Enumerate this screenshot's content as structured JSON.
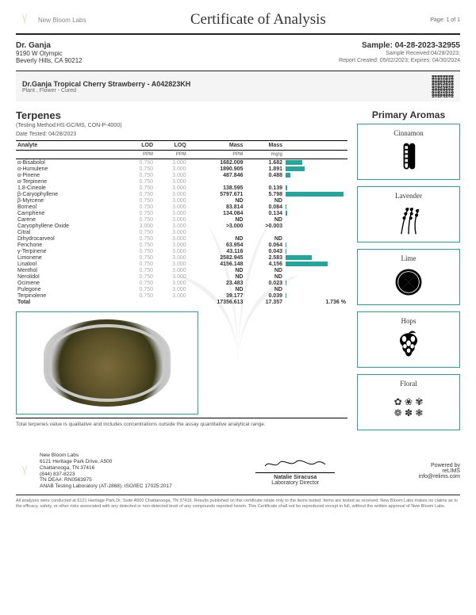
{
  "header": {
    "lab_name": "New Bloom Labs",
    "title": "Certificate of Analysis",
    "page": "Page: 1 of 1"
  },
  "client": {
    "name": "Dr. Ganja",
    "address1": "9190 W Olympic",
    "address2": "Beverly Hills, CA 90212"
  },
  "sample": {
    "id": "Sample: 04-28-2023-32955",
    "received": "Sample Received:04/28/2023;",
    "report": "Report Created: 05/02/2023; Expires: 04/30/2024"
  },
  "product": {
    "name": "Dr.Ganja Tropical Cherry Strawberry - A042823KH",
    "type": "Plant , Flower - Cured"
  },
  "terpenes": {
    "title": "Terpenes",
    "method": "(Testing Method:HS-GC/MS, CON-P-4000)",
    "date_tested": "Date Tested: 04/28/2023",
    "columns": [
      "Analyte",
      "LOD",
      "LOQ",
      "Mass",
      "Mass",
      ""
    ],
    "units": [
      "",
      "PPM",
      "PPM",
      "PPM",
      "mg/g",
      ""
    ],
    "max_bar": 6000,
    "rows": [
      {
        "a": "α-Bisabolol",
        "lod": "0.750",
        "loq": "3.000",
        "ppm": "1682.009",
        "mgg": "1.682",
        "bar": 1682
      },
      {
        "a": "α-Humulene",
        "lod": "0.750",
        "loq": "3.000",
        "ppm": "1890.905",
        "mgg": "1.891",
        "bar": 1891
      },
      {
        "a": "α-Pinene",
        "lod": "0.750",
        "loq": "3.000",
        "ppm": "487.846",
        "mgg": "0.488",
        "bar": 488
      },
      {
        "a": "α-Terpinene",
        "lod": "0.750",
        "loq": "3.000",
        "ppm": "<LOQ",
        "mgg": "<LOQ",
        "bar": 0
      },
      {
        "a": "1,8-Cineole",
        "lod": "0.750",
        "loq": "3.000",
        "ppm": "138.595",
        "mgg": "0.139",
        "bar": 139
      },
      {
        "a": "β-Caryophyllene",
        "lod": "0.750",
        "loq": "3.000",
        "ppm": "5797.671",
        "mgg": "5.798",
        "bar": 5798
      },
      {
        "a": "β-Myrcene",
        "lod": "0.750",
        "loq": "3.000",
        "ppm": "ND",
        "mgg": "ND",
        "bar": 0
      },
      {
        "a": "Borneol",
        "lod": "0.750",
        "loq": "3.000",
        "ppm": "83.814",
        "mgg": "0.084",
        "bar": 84
      },
      {
        "a": "Camphene",
        "lod": "0.750",
        "loq": "3.000",
        "ppm": "134.084",
        "mgg": "0.134",
        "bar": 134
      },
      {
        "a": "Carene",
        "lod": "0.750",
        "loq": "3.000",
        "ppm": "ND",
        "mgg": "ND",
        "bar": 0
      },
      {
        "a": "Caryophyllene Oxide",
        "lod": "3.000",
        "loq": "3.000",
        "ppm": ">3.000",
        "mgg": ">0.003",
        "bar": 3
      },
      {
        "a": "Citral",
        "lod": "0.750",
        "loq": "3.000",
        "ppm": "<LOQ",
        "mgg": "<LOQ",
        "bar": 0
      },
      {
        "a": "Dihydrocarveol",
        "lod": "0.750",
        "loq": "3.000",
        "ppm": "ND",
        "mgg": "ND",
        "bar": 0
      },
      {
        "a": "Fenchone",
        "lod": "0.750",
        "loq": "3.000",
        "ppm": "63.954",
        "mgg": "0.064",
        "bar": 64
      },
      {
        "a": "γ-Terpinene",
        "lod": "0.750",
        "loq": "3.000",
        "ppm": "43.116",
        "mgg": "0.043",
        "bar": 43
      },
      {
        "a": "Limonene",
        "lod": "0.750",
        "loq": "3.000",
        "ppm": "2582.945",
        "mgg": "2.583",
        "bar": 2583
      },
      {
        "a": "Linalool",
        "lod": "0.750",
        "loq": "3.000",
        "ppm": "4156.148",
        "mgg": "4.156",
        "bar": 4156
      },
      {
        "a": "Menthol",
        "lod": "0.750",
        "loq": "3.000",
        "ppm": "ND",
        "mgg": "ND",
        "bar": 0
      },
      {
        "a": "Nerolidol",
        "lod": "0.750",
        "loq": "3.000",
        "ppm": "ND",
        "mgg": "ND",
        "bar": 0
      },
      {
        "a": "Ocimene",
        "lod": "0.750",
        "loq": "3.000",
        "ppm": "23.483",
        "mgg": "0.023",
        "bar": 23
      },
      {
        "a": "Pulegone",
        "lod": "0.750",
        "loq": "3.000",
        "ppm": "ND",
        "mgg": "ND",
        "bar": 0
      },
      {
        "a": "Terpinolene",
        "lod": "0.750",
        "loq": "3.000",
        "ppm": "39.177",
        "mgg": "0.039",
        "bar": 39
      }
    ],
    "total": {
      "a": "Total",
      "ppm": "17356.613",
      "mgg": "17.357",
      "pct": "1.736 %"
    },
    "note": "Total terpenes value is qualitative and includes concentrations outside the assay quantitative analytical range."
  },
  "aromas": {
    "title": "Primary Aromas",
    "items": [
      {
        "name": "Cinnamon"
      },
      {
        "name": "Lavender"
      },
      {
        "name": "Lime"
      },
      {
        "name": "Hops"
      },
      {
        "name": "Floral"
      }
    ]
  },
  "footer": {
    "address": [
      "New Bloom Labs",
      "6121 Heritage Park Drive, A500",
      "Chattanooga, TN 37416",
      "(844) 837-8223",
      "TN DEA#: RN0563975",
      "ANAB Testing Laboratory (AT-2868): ISO/IEC 17025:2017"
    ],
    "signer_name": "Natalie Siracusa",
    "signer_title": "Laboratory Director",
    "powered_by": "Powered by",
    "relims": "reLIMS",
    "relims_url": "info@relims.com"
  },
  "disclaimer": "All analyses were conducted at 6121 Heritage Park Dr. Suite A500 Chattanooga, TN 37416. Results published on this certificate relate only to the items tested. Items are tested as received. New Bloom Labs makes no claims as to the efficacy, safety, or other risks associated with any detected or non-detected level of any compounds reported herein. This Certificate shall not be reproduced except in full, without the written approval of New Bloom Labs.",
  "colors": {
    "accent": "#26a69a"
  }
}
